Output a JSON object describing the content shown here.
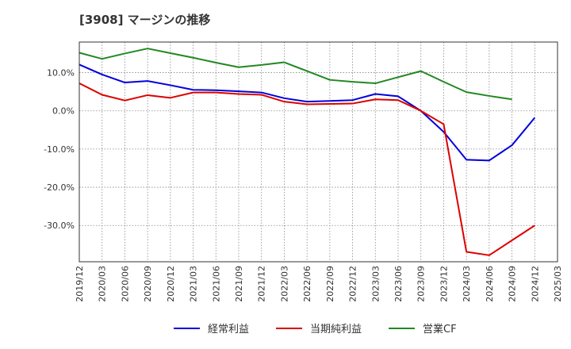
{
  "chart_data": {
    "type": "line",
    "title": "[3908]  マージンの推移",
    "xlabel": "",
    "ylabel": "",
    "x": [
      "2019/12",
      "2020/03",
      "2020/06",
      "2020/09",
      "2020/12",
      "2021/03",
      "2021/06",
      "2021/09",
      "2021/12",
      "2022/03",
      "2022/06",
      "2022/09",
      "2022/12",
      "2023/03",
      "2023/06",
      "2023/09",
      "2023/12",
      "2024/03",
      "2024/06",
      "2024/09",
      "2024/12",
      "2025/03"
    ],
    "ylim": [
      -39.5,
      18
    ],
    "yticks": [
      10,
      0,
      -10,
      -20,
      -30
    ],
    "ytick_labels": [
      "10.0%",
      "0.0%",
      "-10.0%",
      "-20.0%",
      "-30.0%"
    ],
    "grid": true,
    "legend_position": "bottom",
    "series": [
      {
        "name": "経常利益",
        "color": "#0000dd",
        "values": [
          12.1,
          9.5,
          7.4,
          7.8,
          6.7,
          5.5,
          5.4,
          5.1,
          4.8,
          3.3,
          2.4,
          2.6,
          2.8,
          4.4,
          3.8,
          0.0,
          -5.5,
          -12.8,
          -13.0,
          -9.0,
          -1.8,
          null
        ]
      },
      {
        "name": "当期純利益",
        "color": "#dd0000",
        "values": [
          7.2,
          4.2,
          2.7,
          4.1,
          3.4,
          4.8,
          4.8,
          4.4,
          4.2,
          2.4,
          1.7,
          1.8,
          1.9,
          3.0,
          2.8,
          0.0,
          -3.5,
          -36.9,
          -37.8,
          -33.9,
          -30.0,
          null
        ]
      },
      {
        "name": "営業CF",
        "color": "#228822",
        "values": [
          15.2,
          13.6,
          15.0,
          16.3,
          15.1,
          13.9,
          12.6,
          11.4,
          12.0,
          12.7,
          10.4,
          8.1,
          7.6,
          7.2,
          8.8,
          10.4,
          7.6,
          4.9,
          3.9,
          3.0,
          null,
          null
        ]
      }
    ]
  }
}
